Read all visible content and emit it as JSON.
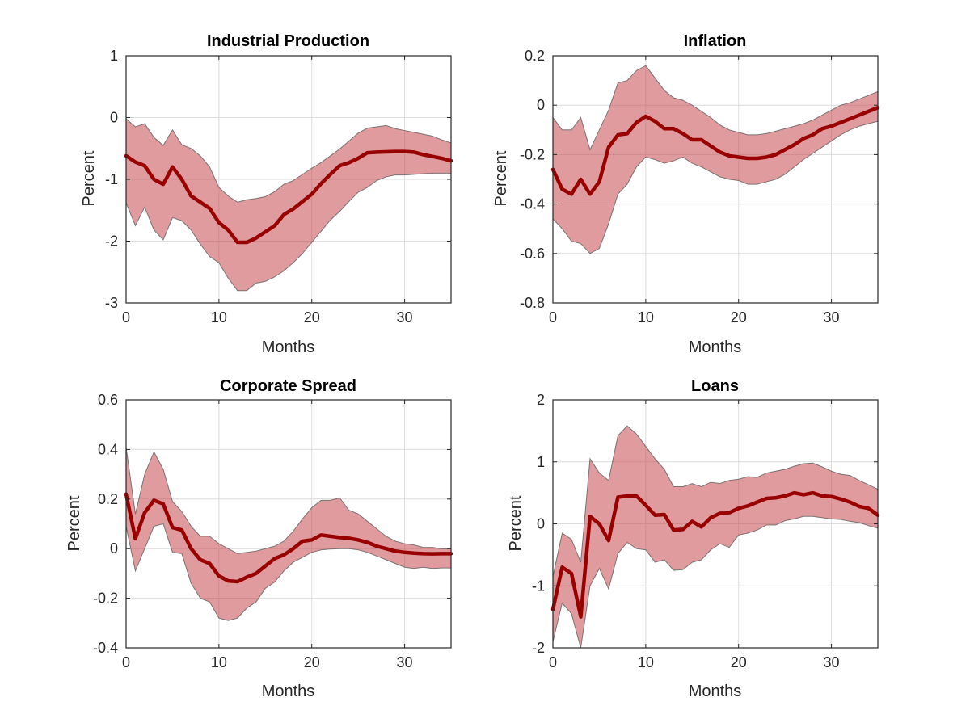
{
  "colors": {
    "line": "#990000",
    "band_fill": "#c4494e",
    "band_edge": "#555555",
    "grid": "#dcdcdc",
    "axes": "#262626"
  },
  "chart_data": [
    {
      "type": "line",
      "title": "Industrial Production",
      "xlabel": "Months",
      "ylabel": "Percent",
      "xlim": [
        0,
        35
      ],
      "ylim": [
        -3,
        1
      ],
      "xticks": [
        0,
        10,
        20,
        30
      ],
      "yticks": [
        -3,
        -2,
        -1,
        0,
        1
      ],
      "yticklabels": [
        "-3",
        "-2",
        "-1",
        "0",
        "1"
      ],
      "grid": true,
      "x": [
        0,
        1,
        2,
        3,
        4,
        5,
        6,
        7,
        8,
        9,
        10,
        11,
        12,
        13,
        14,
        15,
        16,
        17,
        18,
        19,
        20,
        21,
        22,
        23,
        24,
        25,
        26,
        27,
        28,
        29,
        30,
        31,
        32,
        33,
        34,
        35
      ],
      "series": [
        {
          "values": [
            -0.62,
            -0.72,
            -0.78,
            -1.0,
            -1.08,
            -0.8,
            -1.0,
            -1.27,
            -1.37,
            -1.47,
            -1.7,
            -1.82,
            -2.02,
            -2.02,
            -1.95,
            -1.85,
            -1.75,
            -1.57,
            -1.48,
            -1.36,
            -1.24,
            -1.07,
            -0.92,
            -0.78,
            -0.73,
            -0.66,
            -0.57,
            -0.56,
            -0.555,
            -0.55,
            -0.55,
            -0.56,
            -0.6,
            -0.63,
            -0.66,
            -0.7
          ]
        }
      ],
      "band_upper": [
        -0.02,
        -0.15,
        -0.1,
        -0.32,
        -0.45,
        -0.2,
        -0.44,
        -0.5,
        -0.62,
        -0.8,
        -1.13,
        -1.27,
        -1.37,
        -1.33,
        -1.31,
        -1.28,
        -1.2,
        -1.08,
        -1.02,
        -0.92,
        -0.82,
        -0.73,
        -0.62,
        -0.51,
        -0.38,
        -0.25,
        -0.17,
        -0.15,
        -0.13,
        -0.18,
        -0.21,
        -0.24,
        -0.27,
        -0.3,
        -0.36,
        -0.41
      ],
      "band_lower": [
        -1.38,
        -1.75,
        -1.45,
        -1.82,
        -1.98,
        -1.62,
        -1.67,
        -1.82,
        -2.05,
        -2.25,
        -2.35,
        -2.6,
        -2.8,
        -2.8,
        -2.68,
        -2.65,
        -2.58,
        -2.48,
        -2.35,
        -2.2,
        -2.02,
        -1.84,
        -1.66,
        -1.52,
        -1.36,
        -1.21,
        -1.13,
        -1.02,
        -0.96,
        -0.93,
        -0.93,
        -0.92,
        -0.91,
        -0.9,
        -0.9,
        -0.9
      ]
    },
    {
      "type": "line",
      "title": "Inflation",
      "xlabel": "Months",
      "ylabel": "Percent",
      "xlim": [
        0,
        35
      ],
      "ylim": [
        -0.8,
        0.2
      ],
      "xticks": [
        0,
        10,
        20,
        30
      ],
      "yticks": [
        -0.8,
        -0.6,
        -0.4,
        -0.2,
        0,
        0.2
      ],
      "yticklabels": [
        "-0.8",
        "-0.6",
        "-0.4",
        "-0.2",
        "0",
        "0.2"
      ],
      "grid": true,
      "x": [
        0,
        1,
        2,
        3,
        4,
        5,
        6,
        7,
        8,
        9,
        10,
        11,
        12,
        13,
        14,
        15,
        16,
        17,
        18,
        19,
        20,
        21,
        22,
        23,
        24,
        25,
        26,
        27,
        28,
        29,
        30,
        31,
        32,
        33,
        34,
        35
      ],
      "series": [
        {
          "values": [
            -0.26,
            -0.34,
            -0.36,
            -0.3,
            -0.36,
            -0.31,
            -0.17,
            -0.12,
            -0.115,
            -0.07,
            -0.045,
            -0.065,
            -0.095,
            -0.095,
            -0.115,
            -0.14,
            -0.14,
            -0.165,
            -0.19,
            -0.205,
            -0.21,
            -0.215,
            -0.215,
            -0.21,
            -0.2,
            -0.18,
            -0.16,
            -0.135,
            -0.12,
            -0.095,
            -0.085,
            -0.07,
            -0.055,
            -0.04,
            -0.025,
            -0.01
          ]
        }
      ],
      "band_upper": [
        -0.05,
        -0.1,
        -0.1,
        -0.05,
        -0.18,
        -0.1,
        -0.02,
        0.09,
        0.1,
        0.14,
        0.16,
        0.11,
        0.06,
        0.03,
        0.02,
        0.0,
        -0.025,
        -0.05,
        -0.08,
        -0.1,
        -0.11,
        -0.12,
        -0.12,
        -0.115,
        -0.105,
        -0.095,
        -0.085,
        -0.075,
        -0.06,
        -0.04,
        -0.02,
        0.0,
        0.01,
        0.025,
        0.04,
        0.055
      ],
      "band_lower": [
        -0.46,
        -0.5,
        -0.55,
        -0.56,
        -0.6,
        -0.58,
        -0.48,
        -0.36,
        -0.32,
        -0.25,
        -0.21,
        -0.22,
        -0.235,
        -0.225,
        -0.21,
        -0.235,
        -0.25,
        -0.27,
        -0.29,
        -0.3,
        -0.305,
        -0.32,
        -0.32,
        -0.31,
        -0.3,
        -0.28,
        -0.25,
        -0.22,
        -0.195,
        -0.17,
        -0.145,
        -0.12,
        -0.1,
        -0.085,
        -0.075,
        -0.065
      ]
    },
    {
      "type": "line",
      "title": "Corporate Spread",
      "xlabel": "Months",
      "ylabel": "Percent",
      "xlim": [
        0,
        35
      ],
      "ylim": [
        -0.4,
        0.6
      ],
      "xticks": [
        0,
        10,
        20,
        30
      ],
      "yticks": [
        -0.4,
        -0.2,
        0,
        0.2,
        0.4,
        0.6
      ],
      "yticklabels": [
        "-0.4",
        "-0.2",
        "0",
        "0.2",
        "0.4",
        "0.6"
      ],
      "grid": true,
      "x": [
        0,
        1,
        2,
        3,
        4,
        5,
        6,
        7,
        8,
        9,
        10,
        11,
        12,
        13,
        14,
        15,
        16,
        17,
        18,
        19,
        20,
        21,
        22,
        23,
        24,
        25,
        26,
        27,
        28,
        29,
        30,
        31,
        32,
        33,
        34,
        35
      ],
      "series": [
        {
          "values": [
            0.22,
            0.04,
            0.145,
            0.195,
            0.18,
            0.085,
            0.075,
            0.0,
            -0.045,
            -0.06,
            -0.11,
            -0.13,
            -0.133,
            -0.115,
            -0.1,
            -0.07,
            -0.04,
            -0.025,
            0.0,
            0.03,
            0.035,
            0.055,
            0.05,
            0.045,
            0.042,
            0.035,
            0.025,
            0.01,
            0.0,
            -0.01,
            -0.015,
            -0.018,
            -0.02,
            -0.021,
            -0.02,
            -0.02
          ]
        }
      ],
      "band_upper": [
        0.41,
        0.14,
        0.3,
        0.39,
        0.32,
        0.19,
        0.15,
        0.09,
        0.05,
        0.05,
        0.02,
        0.0,
        -0.02,
        -0.015,
        -0.01,
        0.0,
        0.01,
        0.03,
        0.07,
        0.12,
        0.165,
        0.195,
        0.195,
        0.205,
        0.155,
        0.14,
        0.11,
        0.08,
        0.05,
        0.03,
        0.02,
        0.015,
        0.005,
        0.005,
        0.0,
        0.0
      ],
      "band_lower": [
        0.09,
        -0.09,
        0.0,
        0.09,
        0.1,
        -0.015,
        -0.02,
        -0.14,
        -0.2,
        -0.215,
        -0.28,
        -0.29,
        -0.28,
        -0.24,
        -0.215,
        -0.16,
        -0.135,
        -0.09,
        -0.055,
        -0.035,
        -0.015,
        -0.005,
        -0.002,
        0.0,
        0.0,
        -0.005,
        -0.015,
        -0.03,
        -0.045,
        -0.06,
        -0.075,
        -0.08,
        -0.075,
        -0.08,
        -0.078,
        -0.078
      ]
    },
    {
      "type": "line",
      "title": "Loans",
      "xlabel": "Months",
      "ylabel": "Percent",
      "xlim": [
        0,
        35
      ],
      "ylim": [
        -2,
        2
      ],
      "xticks": [
        0,
        10,
        20,
        30
      ],
      "yticks": [
        -2,
        -1,
        0,
        1,
        2
      ],
      "yticklabels": [
        "-2",
        "-1",
        "0",
        "1",
        "2"
      ],
      "grid": true,
      "x": [
        0,
        1,
        2,
        3,
        4,
        5,
        6,
        7,
        8,
        9,
        10,
        11,
        12,
        13,
        14,
        15,
        16,
        17,
        18,
        19,
        20,
        21,
        22,
        23,
        24,
        25,
        26,
        27,
        28,
        29,
        30,
        31,
        32,
        33,
        34,
        35
      ],
      "series": [
        {
          "values": [
            -1.38,
            -0.7,
            -0.8,
            -1.5,
            0.12,
            0.0,
            -0.27,
            0.43,
            0.45,
            0.45,
            0.3,
            0.14,
            0.15,
            -0.1,
            -0.09,
            0.04,
            -0.05,
            0.1,
            0.17,
            0.18,
            0.25,
            0.29,
            0.35,
            0.41,
            0.42,
            0.45,
            0.5,
            0.47,
            0.5,
            0.45,
            0.44,
            0.4,
            0.35,
            0.28,
            0.25,
            0.14
          ]
        }
      ],
      "band_upper": [
        -0.85,
        -0.15,
        -0.25,
        -0.62,
        1.05,
        0.82,
        0.7,
        1.42,
        1.58,
        1.45,
        1.25,
        1.05,
        0.88,
        0.6,
        0.6,
        0.65,
        0.6,
        0.67,
        0.65,
        0.7,
        0.72,
        0.76,
        0.75,
        0.82,
        0.85,
        0.88,
        0.93,
        0.97,
        0.98,
        0.92,
        0.85,
        0.8,
        0.78,
        0.7,
        0.63,
        0.56
      ],
      "band_lower": [
        -1.9,
        -1.28,
        -1.45,
        -2.0,
        -1.0,
        -0.72,
        -1.05,
        -0.48,
        -0.3,
        -0.4,
        -0.42,
        -0.62,
        -0.58,
        -0.75,
        -0.74,
        -0.62,
        -0.58,
        -0.42,
        -0.32,
        -0.38,
        -0.18,
        -0.15,
        -0.1,
        -0.02,
        -0.02,
        0.05,
        0.08,
        0.12,
        0.12,
        0.1,
        0.08,
        0.07,
        0.04,
        0.02,
        -0.03,
        -0.07
      ]
    }
  ]
}
